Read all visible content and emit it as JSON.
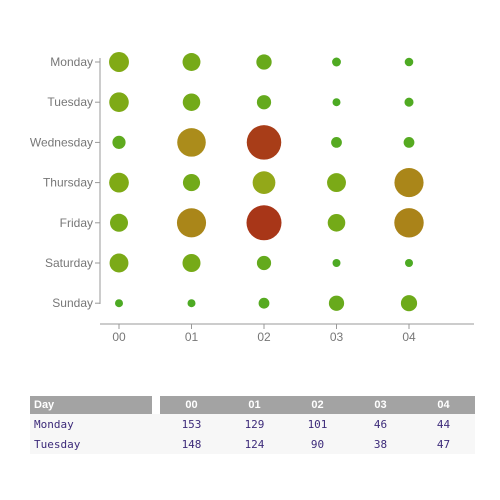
{
  "chart_data": {
    "type": "scatter",
    "title": "",
    "xlabel": "",
    "ylabel": "",
    "categories_x": [
      "00",
      "01",
      "02",
      "03",
      "04"
    ],
    "categories_y": [
      "Monday",
      "Tuesday",
      "Wednesday",
      "Thursday",
      "Friday",
      "Saturday",
      "Sunday"
    ],
    "values": [
      [
        153,
        129,
        101,
        46,
        44
      ],
      [
        148,
        124,
        90,
        38,
        47
      ],
      [
        80,
        280,
        390,
        60,
        60
      ],
      [
        150,
        120,
        190,
        140,
        290
      ],
      [
        130,
        290,
        400,
        125,
        295
      ],
      [
        140,
        130,
        90,
        40,
        40
      ],
      [
        40,
        40,
        60,
        100,
        110
      ]
    ],
    "grid": false,
    "legend": "none"
  },
  "table": {
    "header_day": "Day",
    "columns": [
      "00",
      "01",
      "02",
      "03",
      "04"
    ],
    "rows": [
      {
        "day": "Monday",
        "values": [
          153,
          129,
          101,
          46,
          44
        ]
      },
      {
        "day": "Tuesday",
        "values": [
          148,
          124,
          90,
          38,
          47
        ]
      }
    ]
  }
}
